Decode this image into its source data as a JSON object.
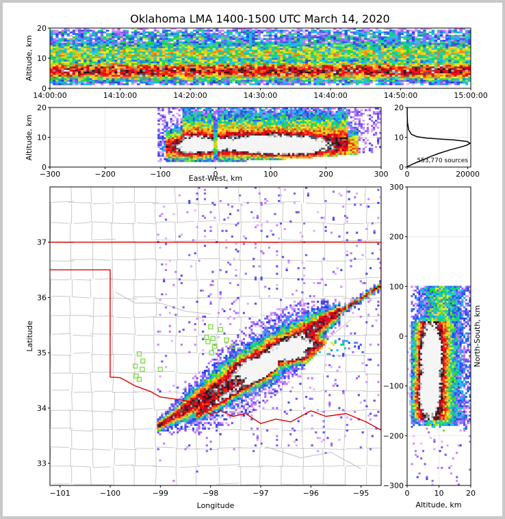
{
  "title": "Oklahoma LMA 1400-1500 UTC March 14, 2020",
  "colors": {
    "border_red": "#e00000",
    "county": "#c8c8c8",
    "station": "#7ddc3c"
  },
  "chart_data": [
    {
      "name": "time-altitude",
      "type": "heatmap",
      "ylabel": "Altitude, km",
      "ylim": [
        0,
        20
      ],
      "yticks": [
        "0",
        "10",
        "20"
      ],
      "xticks": [
        "14:00:00",
        "14:10:00",
        "14:20:00",
        "14:30:00",
        "14:40:00",
        "14:50:00",
        "15:00:00"
      ]
    },
    {
      "name": "eastwest-altitude",
      "type": "heatmap",
      "xlabel": "East-West, km",
      "ylabel": "Altitude, km",
      "xlim": [
        -300,
        300
      ],
      "ylim": [
        0,
        20
      ],
      "xticks": [
        "−300",
        "−200",
        "−100",
        "0",
        "100",
        "200",
        "300"
      ],
      "yticks": [
        "0",
        "10",
        "20"
      ]
    },
    {
      "name": "altitude-histogram",
      "type": "line",
      "xlim": [
        0,
        21000
      ],
      "ylim": [
        0,
        20
      ],
      "xticks": [
        "0",
        "20000"
      ],
      "yticks": [
        "0",
        "10",
        "20"
      ],
      "annotation": "553,770 sources",
      "profile": [
        [
          0,
          0.2
        ],
        [
          900,
          0.5
        ],
        [
          1800,
          1
        ],
        [
          3200,
          1.6
        ],
        [
          5200,
          2.4
        ],
        [
          7600,
          3.5
        ],
        [
          10500,
          4.6
        ],
        [
          14200,
          5.8
        ],
        [
          17200,
          6.6
        ],
        [
          19600,
          7.3
        ],
        [
          20800,
          8
        ],
        [
          19800,
          8.6
        ],
        [
          15500,
          9.1
        ],
        [
          11000,
          9.4
        ],
        [
          6500,
          9.7
        ],
        [
          3200,
          10.2
        ],
        [
          1400,
          11
        ],
        [
          500,
          12.5
        ],
        [
          120,
          15
        ],
        [
          30,
          18
        ],
        [
          5,
          20
        ]
      ]
    },
    {
      "name": "plan-view",
      "type": "heatmap",
      "xlabel": "Longitude",
      "ylabel": "Latitude",
      "xlim": [
        -101.2,
        -94.6
      ],
      "ylim": [
        32.6,
        38
      ],
      "xticks": [
        "−101",
        "−100",
        "−99",
        "−98",
        "−97",
        "−96",
        "−95"
      ],
      "yticks": [
        "33",
        "34",
        "35",
        "36",
        "37"
      ]
    },
    {
      "name": "northsouth-altitude",
      "type": "heatmap",
      "xlabel": "Altitude, km",
      "ylabel": "North-South, km",
      "xlim": [
        0,
        20
      ],
      "ylim": [
        -300,
        300
      ],
      "xticks": [
        "0",
        "10",
        "20"
      ],
      "yticks": [
        "−300",
        "−200",
        "−100",
        "0",
        "100",
        "200",
        "300"
      ]
    }
  ]
}
